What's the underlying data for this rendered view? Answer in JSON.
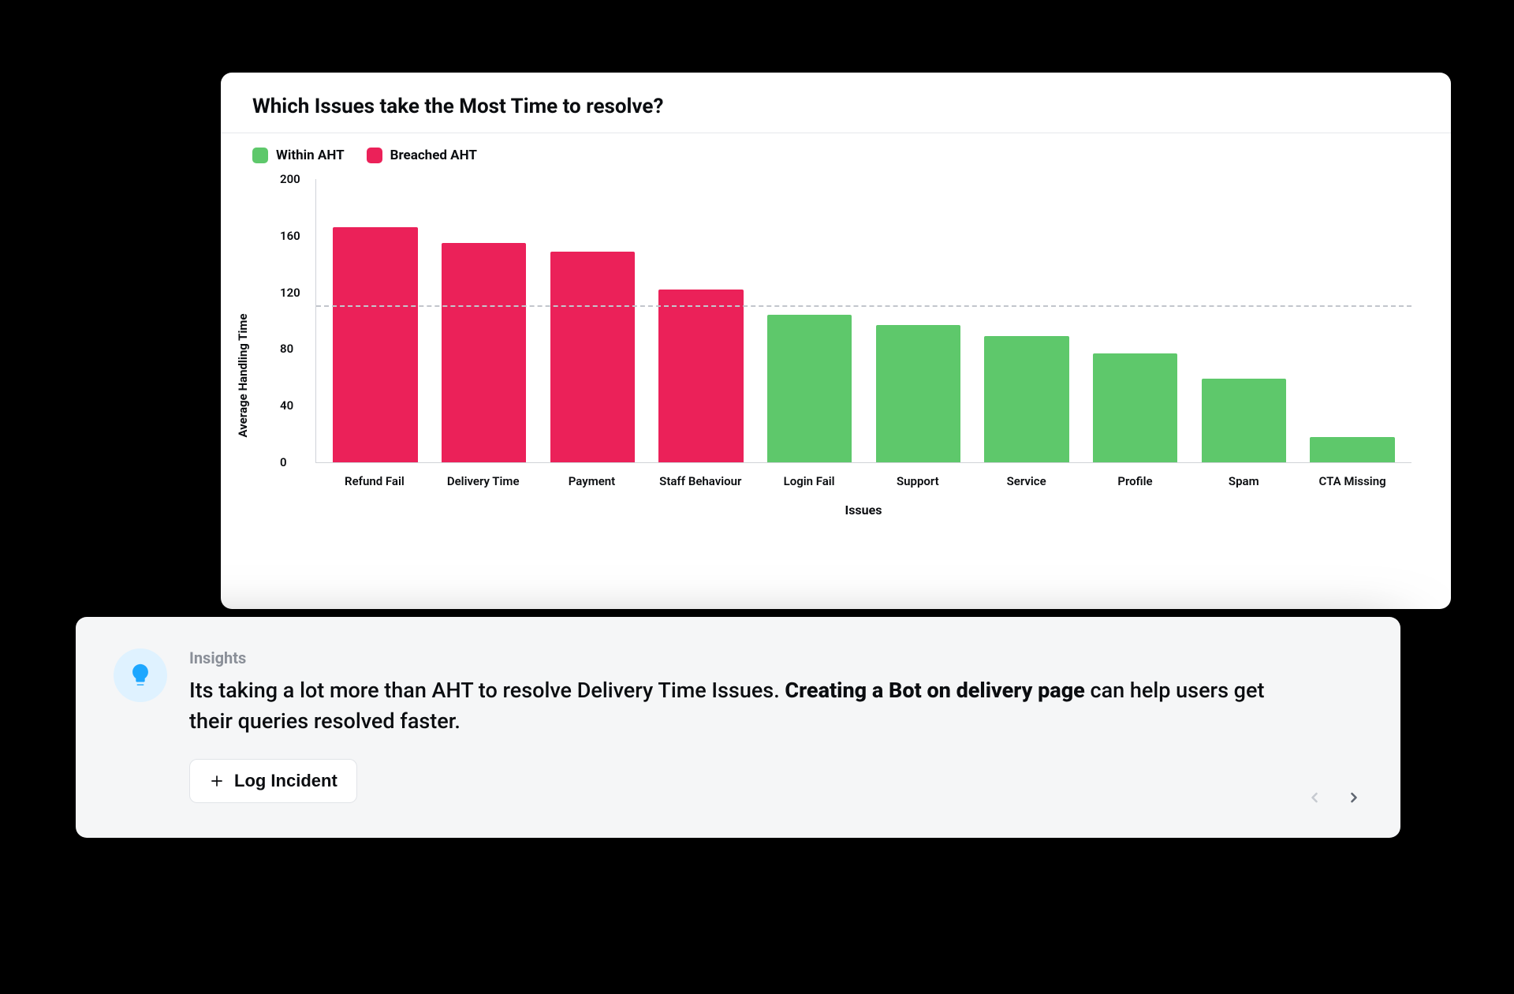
{
  "chart": {
    "title": "Which Issues take the Most Time to resolve?",
    "type": "bar",
    "legend": [
      {
        "label": "Within AHT",
        "color": "#5ec86b"
      },
      {
        "label": "Breached AHT",
        "color": "#eb2159"
      }
    ],
    "y_axis": {
      "label": "Average Handling Time",
      "min": 0,
      "max": 200,
      "tick_step": 40,
      "ticks": [
        0,
        40,
        80,
        120,
        160,
        200
      ]
    },
    "x_axis": {
      "label": "Issues"
    },
    "threshold": {
      "value": 110,
      "color": "#c2c6cc",
      "style": "dashed"
    },
    "categories": [
      "Refund Fail",
      "Delivery Time",
      "Payment",
      "Staff Behaviour",
      "Login Fail",
      "Support",
      "Service",
      "Profile",
      "Spam",
      "CTA Missing"
    ],
    "values": [
      166,
      155,
      149,
      122,
      104,
      97,
      89,
      77,
      59,
      18
    ],
    "bar_colors": [
      "#eb2159",
      "#eb2159",
      "#eb2159",
      "#eb2159",
      "#5ec86b",
      "#5ec86b",
      "#5ec86b",
      "#5ec86b",
      "#5ec86b",
      "#5ec86b"
    ],
    "background_color": "#ffffff",
    "axis_color": "#d0d3d8",
    "label_fontsize": 15,
    "title_fontsize": 26,
    "bar_width": 0.78
  },
  "insights": {
    "heading": "Insights",
    "text_plain_prefix": "Its taking a lot more than AHT to resolve Delivery Time Issues. ",
    "text_bold": "Creating a Bot on delivery page",
    "text_plain_suffix": " can help users get their queries resolved faster.",
    "button_label": "Log Incident",
    "icon_bg": "#dff2ff",
    "icon_color": "#1ea7ff",
    "card_bg": "#f5f6f7",
    "nav": {
      "prev_enabled": false,
      "next_enabled": true,
      "disabled_color": "#c6cad0",
      "enabled_color": "#5e6570"
    }
  },
  "page": {
    "background": "#000000",
    "card_shadow": "0 30px 80px rgba(0,0,0,0.55)"
  }
}
